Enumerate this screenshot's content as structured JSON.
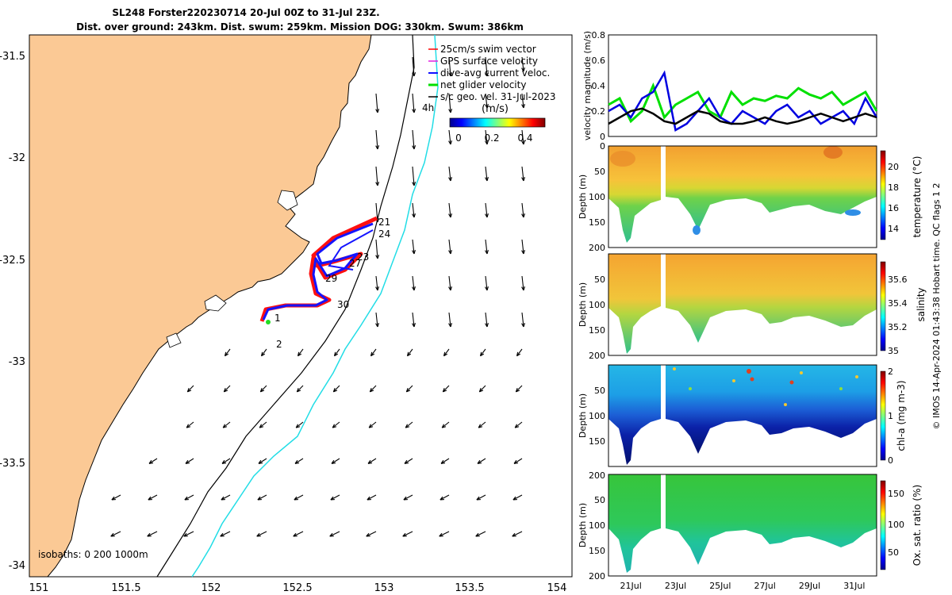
{
  "title": {
    "line1": "SL248 Forster220230714 20-Jul 00Z to 31-Jul 23Z.",
    "line2": "Dist. over ground: 243km. Dist. swum: 259km. Mission DOG: 330km. Swum: 386km"
  },
  "map": {
    "lon_ticks": [
      "151",
      "151.5",
      "152",
      "152.5",
      "153",
      "153.5",
      "154"
    ],
    "lat_ticks": [
      "-31.5",
      "-32",
      "-32.5",
      "-33",
      "-33.5",
      "-34"
    ],
    "legend": [
      "25cm/s swim vector",
      "GPS surface velocity",
      "dive-avg current veloc.",
      "net glider velocity",
      "s/c geo. vel. 31-Jul-2023"
    ],
    "colorbar_label": "(m/s)",
    "colorbar_ticks": [
      "0",
      "0.2",
      "0.4"
    ],
    "hours_label": "4h",
    "isobaths_label": "isobaths: 0   200  1000m",
    "day_labels": [
      "21",
      "24",
      "23",
      "27",
      "29",
      "30",
      "1",
      "2"
    ],
    "colors": {
      "land": "#fbc995",
      "glider_track": "#1010ff",
      "swim_vector": "#ff0000",
      "isobath200": "#000000",
      "isobath1000": "#22dde6"
    }
  },
  "chart_data": [
    {
      "type": "line",
      "ylabel": "velocity magnitude (m/s)",
      "ylim": [
        0,
        0.8
      ],
      "yticks": [
        "0",
        "0.2",
        "0.4",
        "0.6",
        "0.8"
      ],
      "x_ticks": [
        "21Jul",
        "23Jul",
        "25Jul",
        "27Jul",
        "29Jul",
        "31Jul"
      ],
      "x": [
        20.0,
        20.5,
        21.0,
        21.5,
        22.0,
        22.5,
        23.0,
        23.5,
        24.0,
        24.5,
        25.0,
        25.5,
        26.0,
        26.5,
        27.0,
        27.5,
        28.0,
        28.5,
        29.0,
        29.5,
        30.0,
        30.5,
        31.0,
        31.5,
        32.0
      ],
      "series": [
        {
          "color": "#00e000",
          "values": [
            0.25,
            0.3,
            0.12,
            0.2,
            0.4,
            0.15,
            0.25,
            0.3,
            0.35,
            0.2,
            0.15,
            0.35,
            0.25,
            0.3,
            0.28,
            0.32,
            0.3,
            0.38,
            0.33,
            0.3,
            0.35,
            0.25,
            0.3,
            0.35,
            0.2
          ]
        },
        {
          "color": "#0000e0",
          "values": [
            0.2,
            0.25,
            0.15,
            0.3,
            0.35,
            0.5,
            0.05,
            0.1,
            0.2,
            0.3,
            0.15,
            0.1,
            0.2,
            0.15,
            0.1,
            0.2,
            0.25,
            0.15,
            0.2,
            0.1,
            0.15,
            0.2,
            0.1,
            0.3,
            0.15
          ]
        },
        {
          "color": "#000000",
          "values": [
            0.1,
            0.15,
            0.2,
            0.22,
            0.18,
            0.12,
            0.1,
            0.15,
            0.2,
            0.18,
            0.12,
            0.1,
            0.1,
            0.12,
            0.15,
            0.12,
            0.1,
            0.12,
            0.15,
            0.18,
            0.15,
            0.12,
            0.15,
            0.18,
            0.15
          ]
        }
      ]
    },
    {
      "type": "heatmap",
      "ylabel": "Depth (m)",
      "yticks": [
        "0",
        "50",
        "100",
        "150",
        "200"
      ],
      "colorbar_label": "temperature (°C)",
      "colorbar_ticks": [
        "14",
        "16",
        "18",
        "20"
      ]
    },
    {
      "type": "heatmap",
      "ylabel": "Depth (m)",
      "yticks": [
        "50",
        "100",
        "150",
        "200"
      ],
      "colorbar_label": "salinity",
      "colorbar_ticks": [
        "35",
        "35.2",
        "35.4",
        "35.6"
      ]
    },
    {
      "type": "heatmap",
      "ylabel": "Depth (m)",
      "yticks": [
        "0",
        "50",
        "100",
        "150",
        "200"
      ],
      "colorbar_label": "chl-a (mg m-3)",
      "colorbar_ticks": [
        "0",
        "1",
        "2"
      ]
    },
    {
      "type": "heatmap",
      "ylabel": "Depth (m)",
      "yticks": [
        "50",
        "100",
        "150",
        "200"
      ],
      "colorbar_label": "Ox. sat. ratio (%)",
      "colorbar_ticks": [
        "50",
        "100",
        "150"
      ],
      "x_ticks": [
        "21Jul",
        "23Jul",
        "25Jul",
        "27Jul",
        "29Jul",
        "31Jul"
      ]
    }
  ],
  "footer": "© IMOS 14-Apr-2024 01:43:38 Hobart time. QC flags 1  2"
}
